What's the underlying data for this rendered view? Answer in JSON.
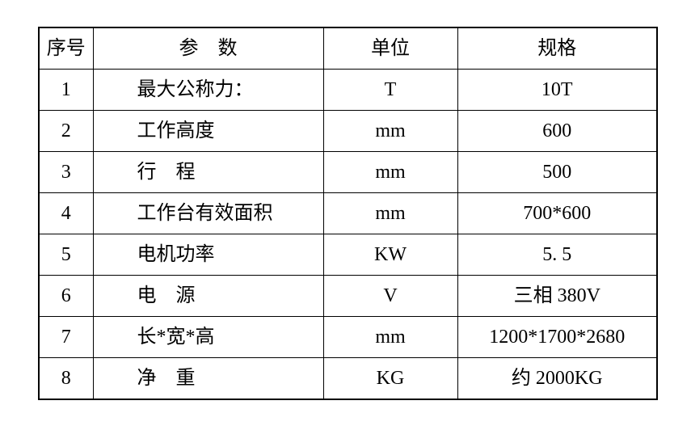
{
  "table": {
    "headers": [
      "序号",
      "参　数",
      "单位",
      "规格"
    ],
    "rows": [
      {
        "no": "1",
        "param": "最大公称力：",
        "unit": "T",
        "spec": "10T"
      },
      {
        "no": "2",
        "param": "工作高度",
        "unit": "mm",
        "spec": "600"
      },
      {
        "no": "3",
        "param": "行　程",
        "unit": "mm",
        "spec": "500"
      },
      {
        "no": "4",
        "param": "工作台有效面积",
        "unit": "mm",
        "spec": "700*600"
      },
      {
        "no": "5",
        "param": "电机功率",
        "unit": "KW",
        "spec": "5. 5"
      },
      {
        "no": "6",
        "param": "电　源",
        "unit": "V",
        "spec": "三相 380V"
      },
      {
        "no": "7",
        "param": "长*宽*高",
        "unit": "mm",
        "spec": "1200*1700*2680"
      },
      {
        "no": "8",
        "param": "净　重",
        "unit": "KG",
        "spec": "约 2000KG"
      }
    ],
    "border_color": "#000000",
    "background_color": "#ffffff"
  }
}
